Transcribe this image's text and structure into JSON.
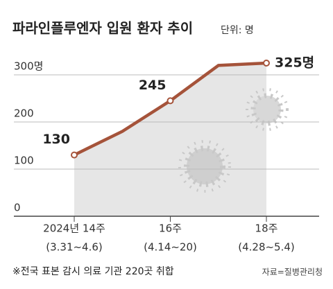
{
  "chart_data": {
    "type": "line",
    "title": "파라인플루엔자 입원 환자 추이",
    "subtitle": "단위: 명",
    "categories": [
      "2024년 14주",
      null,
      "16주",
      null,
      "18주"
    ],
    "category_sublabels": [
      "(3.31~4.6)",
      null,
      "(4.14~20)",
      null,
      "(4.28~5.4)"
    ],
    "series": [
      {
        "name": "입원 환자",
        "color": "#a5533a",
        "values": [
          130,
          180,
          245,
          320,
          325
        ],
        "value_labels": [
          "130",
          null,
          "245",
          null,
          "325명"
        ]
      }
    ],
    "ylim": [
      0,
      350
    ],
    "yticks": [
      0,
      100,
      200,
      {
        "value": 300,
        "label": "300명"
      }
    ],
    "grid": true,
    "footnote": "※전국 표본 감시 의료 기관 220곳 취합",
    "source": "자료=질병관리청"
  }
}
